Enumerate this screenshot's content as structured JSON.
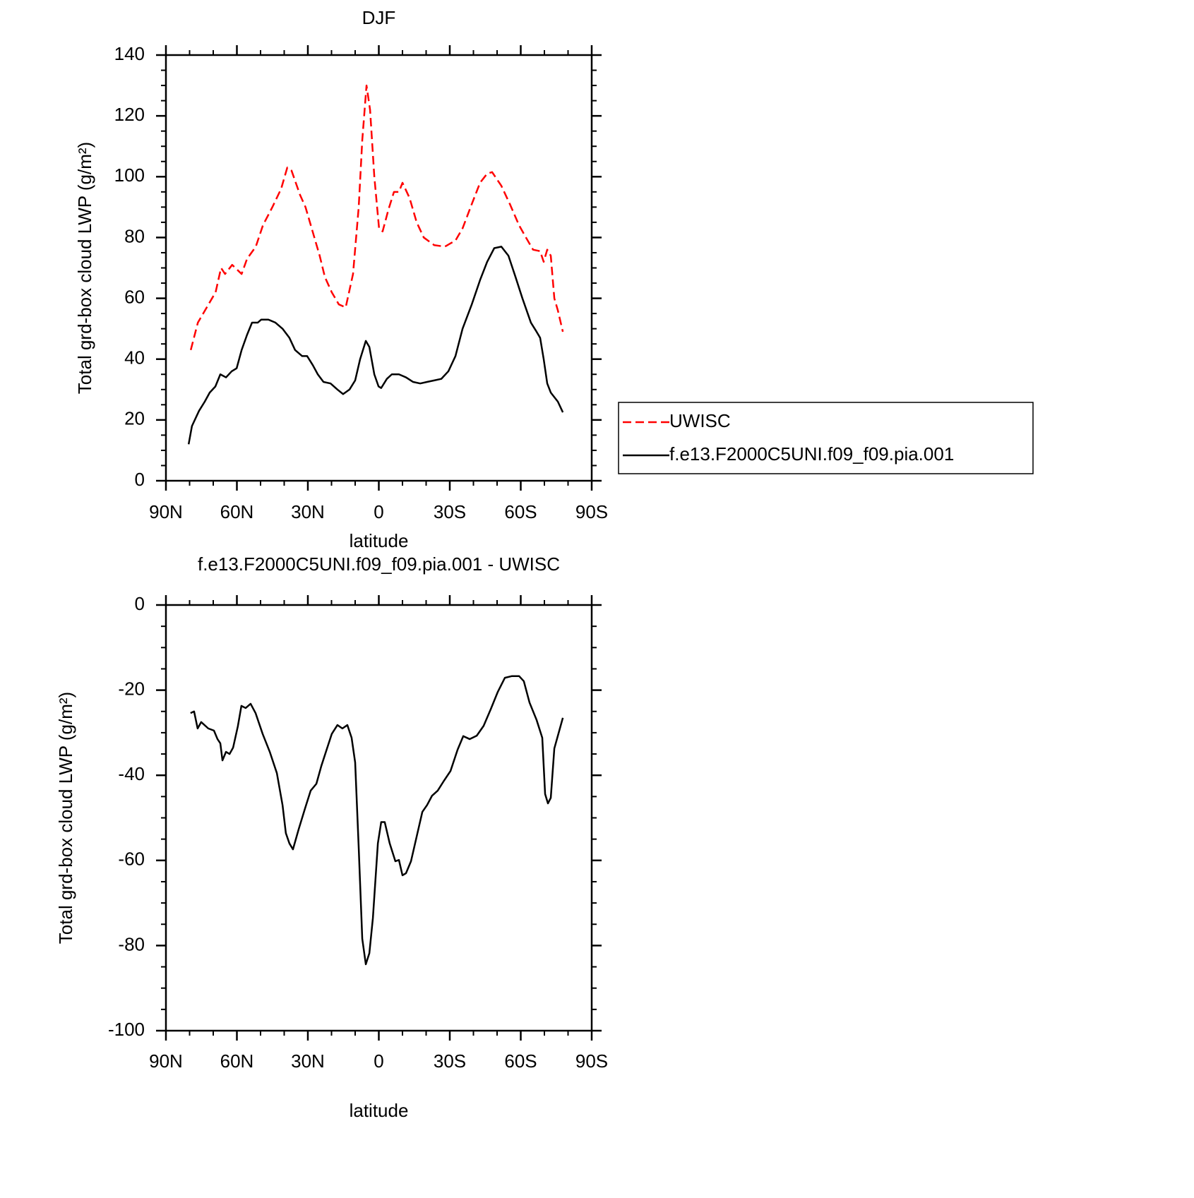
{
  "chart_data": [
    {
      "type": "line",
      "title": "DJF",
      "xlabel": "latitude",
      "ylabel": "Total grd-box cloud LWP (g/m²)",
      "xlim": [
        90,
        -90
      ],
      "xticks": [
        {
          "value": 90,
          "label": "90N"
        },
        {
          "value": 60,
          "label": "60N"
        },
        {
          "value": 30,
          "label": "30N"
        },
        0,
        {
          "value": -30,
          "label": "30S"
        },
        {
          "value": -60,
          "label": "60S"
        },
        {
          "value": -90,
          "label": "90S"
        }
      ],
      "ylim": [
        0,
        140
      ],
      "yticks": [
        0,
        20,
        40,
        60,
        80,
        100,
        120,
        140
      ],
      "legend": "right",
      "series": [
        {
          "name": "UWISC",
          "color": "#ff0000",
          "line_style": "dashed",
          "x": [
            79.5,
            76.5,
            72,
            69,
            66.7,
            65,
            62,
            58,
            55.7,
            52,
            49,
            45,
            41.3,
            38.7,
            36.9,
            33.3,
            31,
            28,
            25,
            22.8,
            19.9,
            16.9,
            14,
            10.9,
            8.5,
            7,
            5.2,
            3.7,
            1.9,
            -0.1,
            -1.6,
            -4,
            -6.4,
            -8.5,
            -10,
            -13,
            -16,
            -19,
            -23.4,
            -27.9,
            -32.4,
            -35.4,
            -39.3,
            -42.8,
            -45.8,
            -47.9,
            -51.8,
            -55.4,
            -59.3,
            -62.2,
            -65.2,
            -68.2,
            -69.7,
            -71.2,
            -72.7,
            -74.2,
            -75.7,
            -77.8
          ],
          "values": [
            43,
            52,
            58,
            62,
            70,
            68,
            71,
            68,
            73,
            77,
            84,
            90,
            96,
            103,
            102,
            94,
            90,
            82,
            74,
            67,
            62,
            58,
            57,
            68,
            90,
            112,
            130,
            122,
            100,
            83,
            82,
            89,
            95,
            95,
            98,
            93,
            85,
            80,
            77.5,
            77,
            79,
            83,
            91,
            98,
            101,
            101.5,
            97,
            91,
            84,
            80,
            76,
            75.5,
            72,
            76,
            74,
            60,
            56,
            49
          ]
        },
        {
          "name": "f.e13.F2000C5UNI.f09_f09.pia.001",
          "color": "#000000",
          "line_style": "solid",
          "x": [
            80.4,
            79,
            76,
            73.6,
            71.5,
            69.1,
            67,
            64.6,
            62.2,
            60.1,
            58,
            55.7,
            53.6,
            51.2,
            49.7,
            46.7,
            43.7,
            40.7,
            37.8,
            35.4,
            32.4,
            30.3,
            27.9,
            25.8,
            23.4,
            20.4,
            17.5,
            15.1,
            12.4,
            10,
            7.9,
            5.5,
            4,
            1.9,
            0.1,
            -1,
            -3.4,
            -5.5,
            -8.5,
            -11.5,
            -14.5,
            -17.5,
            -20.4,
            -23.4,
            -26.4,
            -29.4,
            -32.4,
            -35.4,
            -39.3,
            -42.8,
            -45.8,
            -48.8,
            -51.8,
            -54.8,
            -57.8,
            -60.7,
            -64.3,
            -66.7,
            -68.2,
            -69.7,
            -71.2,
            -72.7,
            -75.7,
            -77.8
          ],
          "values": [
            12,
            18,
            23,
            26,
            29,
            31,
            35,
            34,
            36,
            37,
            43,
            48,
            52,
            52,
            53,
            53,
            52,
            50,
            47,
            43,
            41,
            41,
            38,
            35,
            32.5,
            32,
            30,
            28.5,
            30,
            33,
            40,
            46,
            44,
            35,
            31,
            30.5,
            33.5,
            35,
            35,
            34,
            32.5,
            32,
            32.5,
            33,
            33.5,
            36,
            41,
            50,
            58,
            66,
            72,
            76.5,
            77,
            74,
            67,
            60,
            52,
            49,
            47,
            40,
            32,
            29,
            26,
            22.5
          ]
        }
      ]
    },
    {
      "type": "line",
      "title": "f.e13.F2000C5UNI.f09_f09.pia.001 - UWISC",
      "xlabel": "latitude",
      "ylabel": "Total grd-box cloud LWP (g/m²)",
      "xlim": [
        90,
        -90
      ],
      "xticks": [
        {
          "value": 90,
          "label": "90N"
        },
        {
          "value": 60,
          "label": "60N"
        },
        {
          "value": 30,
          "label": "30N"
        },
        0,
        {
          "value": -30,
          "label": "30S"
        },
        {
          "value": -60,
          "label": "60S"
        },
        {
          "value": -90,
          "label": "90S"
        }
      ],
      "ylim": [
        -100,
        0
      ],
      "yticks": [
        -100,
        -80,
        -60,
        -40,
        -20,
        0
      ],
      "series": [
        {
          "color": "#000000",
          "line_style": "solid",
          "x": [
            79.6,
            78.1,
            76.6,
            75.1,
            72.1,
            69.7,
            68.2,
            67,
            66.1,
            64.6,
            63.1,
            61.6,
            59.6,
            58.1,
            56.3,
            54.2,
            52.1,
            49.1,
            46.1,
            43.1,
            40.7,
            39.3,
            37.8,
            36.3,
            33.9,
            31.2,
            28.8,
            26.4,
            24.3,
            21.9,
            19.9,
            17.5,
            15.4,
            13.3,
            11.5,
            10,
            8.5,
            7,
            5.5,
            4,
            2.5,
            0.4,
            -1,
            -2.5,
            -4.6,
            -7,
            -8.5,
            -10,
            -11.5,
            -13.6,
            -16,
            -18.4,
            -20.4,
            -22.5,
            -24.9,
            -27.3,
            -30.3,
            -33.3,
            -35.7,
            -38.4,
            -41.4,
            -44.3,
            -47.3,
            -50.3,
            -53.3,
            -56.3,
            -59.3,
            -61.3,
            -63.7,
            -66.7,
            -69.1,
            -70.3,
            -71.5,
            -72.7,
            -74.2,
            -76.3,
            -77.8
          ],
          "values": [
            -25.4,
            -25,
            -29,
            -27.5,
            -29,
            -29.5,
            -31.5,
            -32.5,
            -36.5,
            -34.5,
            -35,
            -33.5,
            -28.5,
            -23.7,
            -24.2,
            -23.2,
            -25.4,
            -30.3,
            -34.5,
            -39.5,
            -47,
            -53.6,
            -56,
            -57.4,
            -52.7,
            -47.8,
            -43.6,
            -42,
            -37.8,
            -33.7,
            -30.3,
            -28.2,
            -29,
            -28.2,
            -31.2,
            -37,
            -57,
            -78.4,
            -84.4,
            -81.8,
            -73.5,
            -56,
            -51,
            -51,
            -56,
            -60.2,
            -59.9,
            -63.5,
            -63,
            -60.2,
            -54.4,
            -48.6,
            -47,
            -44.8,
            -43.6,
            -41.5,
            -39,
            -34,
            -30.8,
            -31.5,
            -30.7,
            -28.4,
            -24.5,
            -20.4,
            -17.1,
            -16.7,
            -16.7,
            -17.9,
            -22.9,
            -27,
            -31.2,
            -44.4,
            -46.6,
            -45.3,
            -33.7,
            -29.5,
            -26.5
          ]
        }
      ]
    }
  ]
}
